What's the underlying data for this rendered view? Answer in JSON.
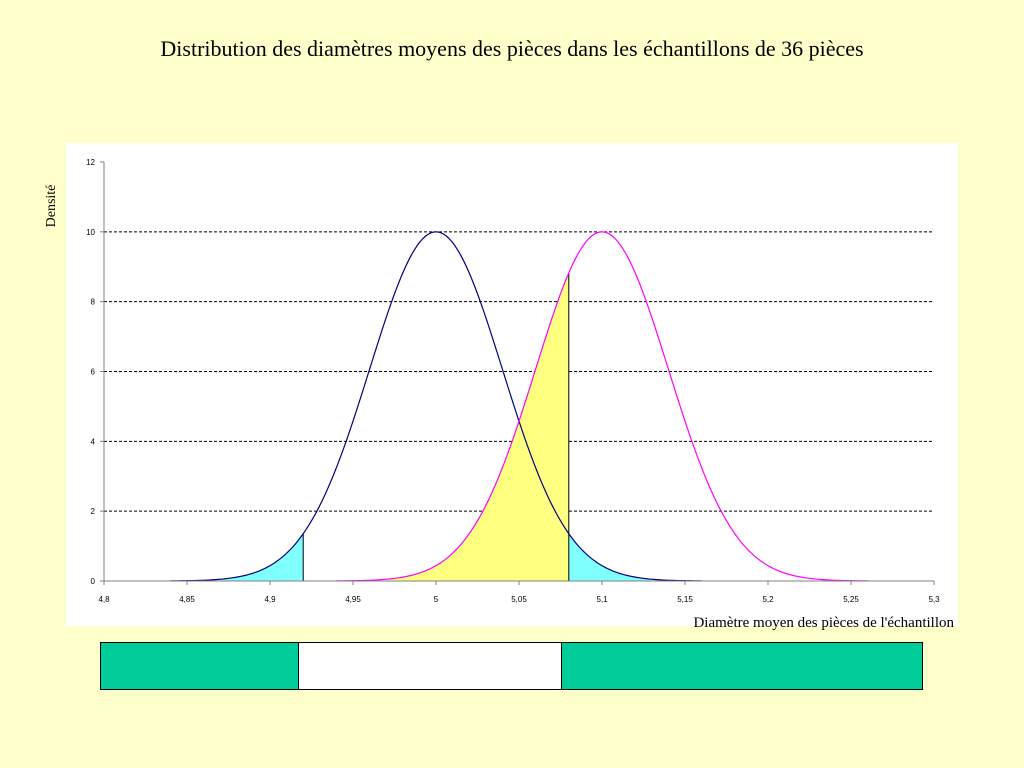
{
  "title": "Distribution des diamètres moyens des pièces dans les échantillons de 36 pièces",
  "colors": {
    "background": "#ffffcc",
    "curve_h0": "#000080",
    "curve_h1": "#ff00ff",
    "tail_fill": "#80ffff",
    "beta_fill": "#ffff80",
    "band_reject": "#00cc99",
    "band_accept": "#ffffff"
  },
  "chart_data": {
    "type": "area",
    "xlabel": "Diamètre moyen des pièces de l'échantillon",
    "ylabel": "Densité",
    "xlim": [
      4.8,
      5.3
    ],
    "ylim": [
      0,
      12
    ],
    "x_ticks": [
      "4,8",
      "4,85",
      "4,9",
      "4,95",
      "5",
      "5,05",
      "5,1",
      "5,15",
      "5,2",
      "5,25",
      "5,3"
    ],
    "y_ticks": [
      "0",
      "2",
      "4",
      "6",
      "8",
      "10",
      "12"
    ],
    "grid": "horizontal-dashed",
    "series": [
      {
        "mean": 5.0,
        "sd": 0.04,
        "peak": 10,
        "color": "#000080"
      },
      {
        "mean": 5.1,
        "sd": 0.04,
        "peak": 10,
        "color": "#ff00ff"
      }
    ],
    "critical_values": [
      4.92,
      5.08
    ],
    "shaded_regions": [
      {
        "from": 4.87,
        "to": 4.92,
        "under": 0,
        "color": "#80ffff"
      },
      {
        "from": 5.08,
        "to": 5.13,
        "under": 0,
        "color": "#80ffff"
      },
      {
        "from": 4.97,
        "to": 5.08,
        "under": 1,
        "color": "#ffff80"
      }
    ],
    "decision_band": [
      {
        "from": 4.8,
        "to": 4.92,
        "color": "#00cc99"
      },
      {
        "from": 4.92,
        "to": 5.08,
        "color": "#ffffff"
      },
      {
        "from": 5.08,
        "to": 5.3,
        "color": "#00cc99"
      }
    ]
  }
}
